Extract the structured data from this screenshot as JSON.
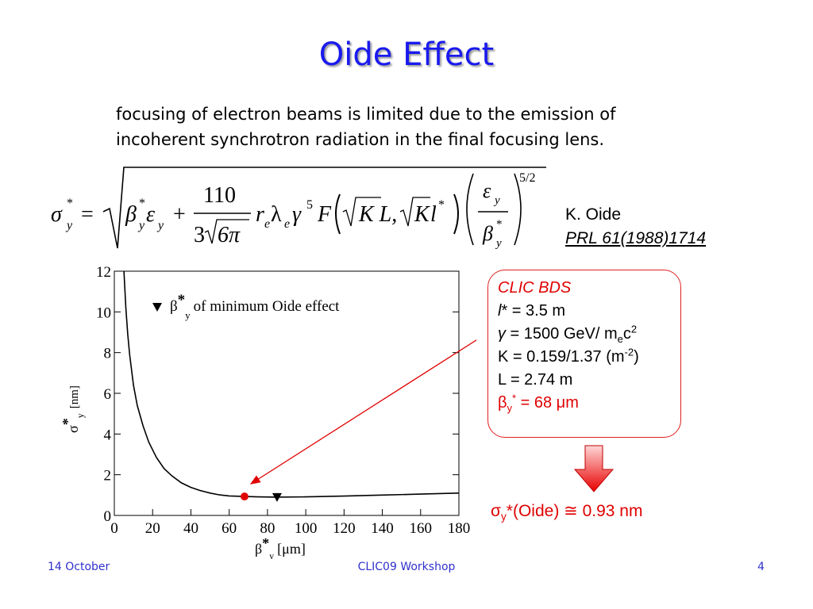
{
  "slide": {
    "title": "Oide Effect",
    "intro_line1": "focusing of electron beams is limited due to the emission of",
    "intro_line2": "incoherent synchrotron radiation in the final focusing lens."
  },
  "formula": {
    "lhs": "σ",
    "lhs_sub": "y",
    "star": "*",
    "equals": "=",
    "beta": "β",
    "eps": "ε",
    "y": "y",
    "plus": "+",
    "num": "110",
    "den": "3",
    "six_pi": "6π",
    "r": "r",
    "e": "e",
    "lambda": "λ",
    "gamma": "γ",
    "five": "5",
    "F": "F",
    "KL": "K L,",
    "K": "K",
    "l": "l",
    "exponent": "5/2"
  },
  "reference": {
    "author": "K. Oide",
    "journal": "PRL 61(1988)1714"
  },
  "info_box": {
    "title": "CLIC BDS",
    "l_star_sym": "l",
    "l_star_rest": "* = 3.5 m",
    "gamma_sym": "γ",
    "gamma_rest": " = 1500 GeV/ m",
    "gamma_sub": "e",
    "gamma_c": "c",
    "gamma_sup": "2",
    "k_line": "K = 0.159/1.37 (m",
    "k_sup": "-2",
    "k_close": ")",
    "l_line": "L = 2.74 m",
    "beta_sym": "β",
    "beta_sub": "y",
    "beta_sup": "*",
    "beta_rest": " = 68 μm"
  },
  "result": {
    "sigma": "σ",
    "sub": "y",
    "text": "*(Oide) ≅ 0.93 nm"
  },
  "footer": {
    "date": "14 October",
    "center": "CLIC09 Workshop",
    "page": "4"
  },
  "chart_data": {
    "type": "line",
    "xlabel_sym": "β",
    "xlabel_star": "*",
    "xlabel_sub": "y",
    "xlabel_unit": "[μm]",
    "ylabel_sym": "σ",
    "ylabel_star": "*",
    "ylabel_sub": "y",
    "ylabel_unit": "[nm]",
    "xlim": [
      0,
      180
    ],
    "ylim": [
      0,
      12
    ],
    "xticks": [
      0,
      20,
      40,
      60,
      80,
      100,
      120,
      140,
      160,
      180
    ],
    "yticks": [
      0,
      2,
      4,
      6,
      8,
      10,
      12
    ],
    "legend_sym": "β",
    "legend_star": "*",
    "legend_sub": "y",
    "legend_text": "of minimum Oide effect",
    "series": [
      {
        "x": [
          5,
          6,
          7,
          8,
          10,
          12,
          15,
          18,
          22,
          26,
          30,
          35,
          40,
          45,
          50,
          55,
          60,
          68,
          75,
          85,
          100,
          120,
          140,
          160,
          180
        ],
        "y": [
          12.0,
          10.2,
          8.9,
          7.9,
          6.4,
          5.4,
          4.4,
          3.6,
          2.85,
          2.3,
          1.95,
          1.6,
          1.38,
          1.22,
          1.1,
          1.01,
          0.96,
          0.93,
          0.91,
          0.9,
          0.91,
          0.95,
          1.0,
          1.05,
          1.1
        ]
      }
    ],
    "marker_clic": {
      "x": 68,
      "y": 0.93
    },
    "marker_min": {
      "x": 85,
      "y": 0.9
    }
  }
}
